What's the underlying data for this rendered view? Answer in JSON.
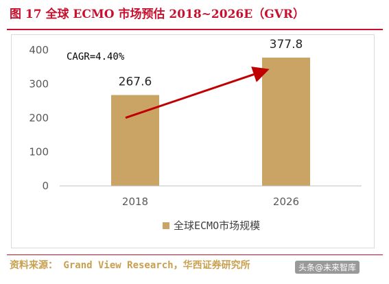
{
  "figure_title": "图 17   全球 ECMO 市场预估 2018~2026E（GVR）",
  "source_text": "资料来源： Grand View Research，华西证券研究所",
  "watermark_text": "头条@未来智库",
  "chart_data": {
    "type": "bar",
    "categories": [
      "2018",
      "2026"
    ],
    "series": [
      {
        "name": "全球ECMO市场规模",
        "values": [
          267.6,
          377.8
        ],
        "color": "#c9a465"
      }
    ],
    "data_labels": [
      "267.6",
      "377.8"
    ],
    "annotation": "CAGR=4.40%",
    "arrow_color": "#c00000",
    "ylim": [
      0,
      400
    ],
    "yticks": [
      0,
      100,
      200,
      300,
      400
    ],
    "grid": false,
    "legend_position": "bottom",
    "title": "",
    "xlabel": "",
    "ylabel": ""
  }
}
